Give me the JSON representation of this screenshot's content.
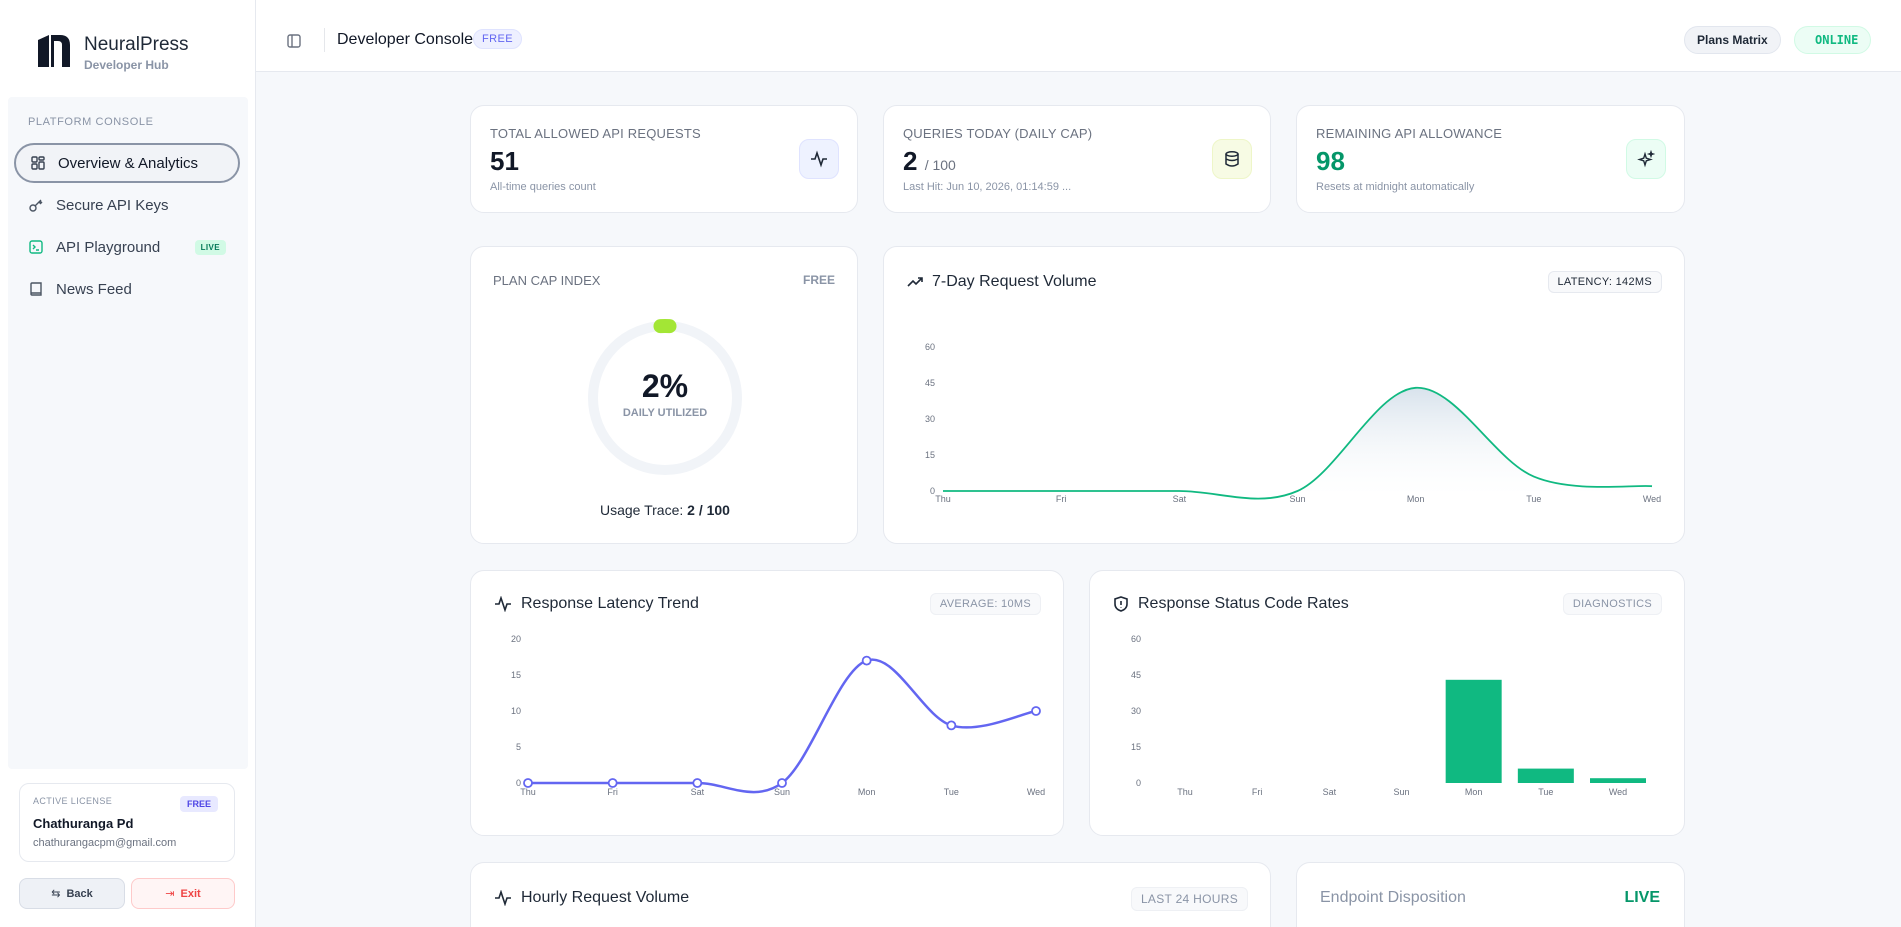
{
  "brand": {
    "name": "NeuralPress",
    "subtitle": "Developer Hub"
  },
  "sidebar": {
    "heading": "PLATFORM CONSOLE",
    "items": [
      {
        "label": "Overview & Analytics",
        "icon": "grid-icon",
        "active": true
      },
      {
        "label": "Secure API Keys",
        "icon": "key-icon"
      },
      {
        "label": "API Playground",
        "icon": "terminal-icon",
        "badge": "LIVE"
      },
      {
        "label": "News Feed",
        "icon": "book-icon"
      }
    ]
  },
  "license": {
    "label": "ACTIVE LICENSE",
    "badge": "FREE",
    "name": "Chathuranga Pd",
    "email": "chathurangacpm@gmail.com"
  },
  "footer_buttons": {
    "back": "Back",
    "exit": "Exit"
  },
  "header": {
    "title": "Developer Console",
    "plan_badge": "FREE",
    "plans_button": "Plans Matrix",
    "status": "ONLINE"
  },
  "stats": [
    {
      "label": "TOTAL ALLOWED API REQUESTS",
      "value": "51",
      "suffix": "",
      "sub": "All-time queries count",
      "icon": "activity-icon",
      "icon_bg": "#eef2ff"
    },
    {
      "label": "QUERIES TODAY (DAILY CAP)",
      "value": "2",
      "suffix": "/ 100",
      "sub": "Last Hit: Jun 10, 2026, 01:14:59 ...",
      "icon": "database-icon",
      "icon_bg": "#f7fbe4"
    },
    {
      "label": "REMAINING API ALLOWANCE",
      "value": "98",
      "suffix": "",
      "sub": "Resets at midnight automatically",
      "icon": "sparkles-icon",
      "icon_bg": "#ecfdf5"
    }
  ],
  "plan_cap": {
    "label": "PLAN CAP INDEX",
    "plan": "FREE",
    "percent_text": "2%",
    "percent": 0.02,
    "caption": "DAILY UTILIZED",
    "trace_label": "Usage Trace:",
    "trace_value": "2 / 100"
  },
  "volume_chart": {
    "title": "7-Day Request Volume",
    "badge": "LATENCY: 142MS"
  },
  "latency_chart": {
    "title": "Response Latency Trend",
    "badge": "AVERAGE: 10MS"
  },
  "status_chart": {
    "title": "Response Status Code Rates",
    "badge": "DIAGNOSTICS"
  },
  "hourly": {
    "title": "Hourly Request Volume",
    "badge": "LAST 24 HOURS"
  },
  "endpoint": {
    "title": "Endpoint Disposition",
    "badge": "LIVE"
  },
  "colors": {
    "accent_green": "#10b981",
    "accent_indigo": "#6366f1",
    "lime": "#a3e635"
  },
  "chart_data": [
    {
      "type": "area",
      "categories": [
        "Thu",
        "Fri",
        "Sat",
        "Sun",
        "Mon",
        "Tue",
        "Wed"
      ],
      "values": [
        0,
        0,
        0,
        0,
        43,
        6,
        2
      ],
      "yticks": [
        0,
        15,
        30,
        45,
        60
      ],
      "ylim": [
        0,
        60
      ],
      "grid": false
    },
    {
      "type": "line",
      "categories": [
        "Thu",
        "Fri",
        "Sat",
        "Sun",
        "Mon",
        "Tue",
        "Wed"
      ],
      "values": [
        0,
        0,
        0,
        0,
        17,
        8,
        10
      ],
      "yticks": [
        0,
        5,
        10,
        15,
        20
      ],
      "ylim": [
        0,
        20
      ],
      "grid": false
    },
    {
      "type": "bar",
      "categories": [
        "Thu",
        "Fri",
        "Sat",
        "Sun",
        "Mon",
        "Tue",
        "Wed"
      ],
      "values": [
        0,
        0,
        0,
        0,
        43,
        6,
        2
      ],
      "yticks": [
        0,
        15,
        30,
        45,
        60
      ],
      "ylim": [
        0,
        60
      ],
      "grid": false
    }
  ]
}
